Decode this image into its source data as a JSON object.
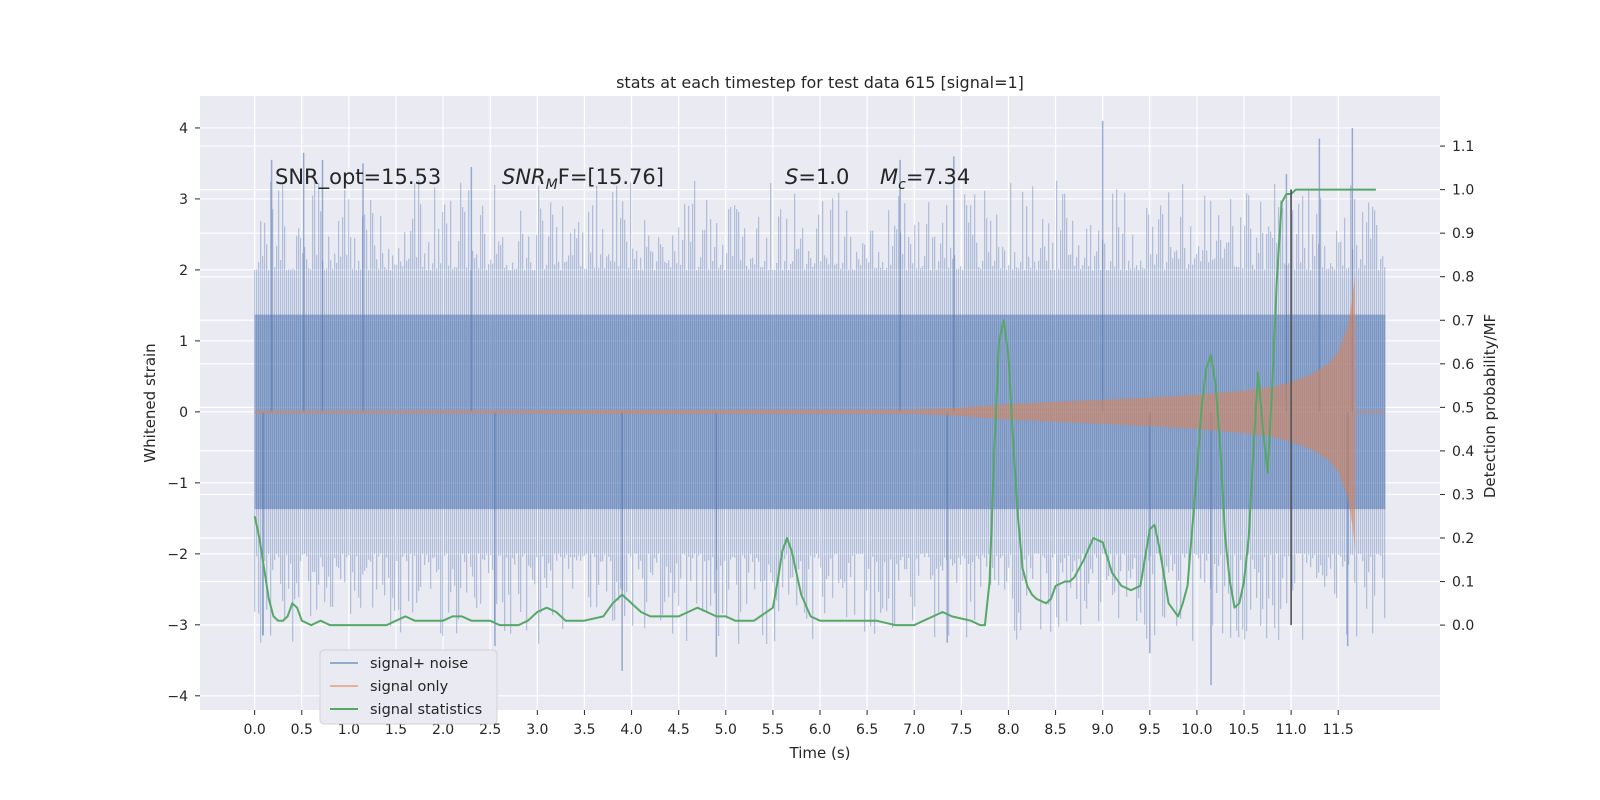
{
  "chart_data": {
    "type": "line",
    "title": "stats at each timestep for test data 615 [signal=1]",
    "xlabel": "Time (s)",
    "ylabel_left": "Whitened strain",
    "ylabel_right": "Detection probability/MF",
    "xlim": [
      -0.58,
      12.58
    ],
    "ylim_left": [
      -4.2,
      4.45
    ],
    "ylim_right": [
      -0.195,
      1.215
    ],
    "x_ticks": [
      0.0,
      0.5,
      1.0,
      1.5,
      2.0,
      2.5,
      3.0,
      3.5,
      4.0,
      4.5,
      5.0,
      5.5,
      6.0,
      6.5,
      7.0,
      7.5,
      8.0,
      8.5,
      9.0,
      9.5,
      10.0,
      10.5,
      11.0,
      11.5
    ],
    "x_tick_labels": [
      "0.0",
      "0.5",
      "1.0",
      "1.5",
      "2.0",
      "2.5",
      "3.0",
      "3.5",
      "4.0",
      "4.5",
      "5.0",
      "5.5",
      "6.0",
      "6.5",
      "7.0",
      "7.5",
      "8.0",
      "8.5",
      "9.0",
      "9.5",
      "10.0",
      "10.5",
      "11.0",
      "11.5"
    ],
    "y_left_ticks": [
      -4,
      -3,
      -2,
      -1,
      0,
      1,
      2,
      3,
      4
    ],
    "y_left_tick_labels": [
      "−4",
      "−3",
      "−2",
      "−1",
      "0",
      "1",
      "2",
      "3",
      "4"
    ],
    "y_right_ticks": [
      0.0,
      0.1,
      0.2,
      0.3,
      0.4,
      0.5,
      0.6,
      0.7,
      0.8,
      0.9,
      1.0,
      1.1
    ],
    "y_right_tick_labels": [
      "0.0",
      "0.1",
      "0.2",
      "0.3",
      "0.4",
      "0.5",
      "0.6",
      "0.7",
      "0.8",
      "0.9",
      "1.0",
      "1.1"
    ],
    "grid": true,
    "legend_position": "lower-left",
    "annotations": [
      {
        "id": "snr_opt",
        "text": "SNR_opt=15.53"
      },
      {
        "id": "snr_mf",
        "base": "SNR",
        "sub": "M",
        "rest": "F=[15.76]"
      },
      {
        "id": "s_value",
        "base": "S",
        "rest": "=1.0"
      },
      {
        "id": "mc_value",
        "base": "M",
        "sub": "c",
        "rest": "=7.34"
      }
    ],
    "vertical_line": {
      "x": 11.0,
      "y_right_range": [
        0.0,
        1.0
      ],
      "color": "#555555"
    },
    "series": [
      {
        "name": "signal+ noise",
        "axis": "left",
        "style": "dense_noise",
        "color": "#4c72b0",
        "t_range": [
          0.0,
          12.0
        ],
        "band_1sigma": 1.37,
        "typical_peak_range": [
          2.0,
          3.7
        ],
        "outlier_peaks": [
          {
            "t": 0.18,
            "v": 3.55
          },
          {
            "t": 0.52,
            "v": 3.65
          },
          {
            "t": 0.72,
            "v": 3.55
          },
          {
            "t": 1.15,
            "v": 3.5
          },
          {
            "t": 2.3,
            "v": 3.45
          },
          {
            "t": 6.85,
            "v": 3.55
          },
          {
            "t": 7.42,
            "v": 3.6
          },
          {
            "t": 9.0,
            "v": 4.1
          },
          {
            "t": 10.95,
            "v": 3.35
          },
          {
            "t": 11.3,
            "v": 3.85
          },
          {
            "t": 11.65,
            "v": 4.0
          },
          {
            "t": 0.09,
            "v": -3.15
          },
          {
            "t": 2.55,
            "v": -3.3
          },
          {
            "t": 3.9,
            "v": -3.65
          },
          {
            "t": 4.9,
            "v": -3.45
          },
          {
            "t": 7.35,
            "v": -3.25
          },
          {
            "t": 9.5,
            "v": -3.4
          },
          {
            "t": 10.15,
            "v": -3.85
          },
          {
            "t": 11.6,
            "v": -3.3
          }
        ]
      },
      {
        "name": "signal only",
        "axis": "left",
        "style": "chirp_envelope",
        "color": "#dd8452",
        "t_range": [
          0.0,
          12.0
        ],
        "envelope_t": [
          0.0,
          7.0,
          7.5,
          8.0,
          8.5,
          9.0,
          9.5,
          10.0,
          10.5,
          10.8,
          11.0,
          11.2,
          11.4,
          11.5,
          11.6,
          11.65,
          11.68
        ],
        "envelope_amp": [
          0.02,
          0.03,
          0.06,
          0.11,
          0.14,
          0.17,
          0.2,
          0.24,
          0.3,
          0.35,
          0.42,
          0.52,
          0.68,
          0.85,
          1.2,
          1.6,
          1.95
        ],
        "cutoff_t": 11.68
      },
      {
        "name": "signal statistics",
        "axis": "right",
        "style": "line",
        "color": "#55a868",
        "x": [
          0.0,
          0.05,
          0.1,
          0.15,
          0.2,
          0.25,
          0.3,
          0.35,
          0.4,
          0.45,
          0.5,
          0.6,
          0.7,
          0.8,
          1.0,
          1.2,
          1.3,
          1.4,
          1.5,
          1.6,
          1.7,
          1.8,
          2.0,
          2.1,
          2.2,
          2.3,
          2.5,
          2.6,
          2.8,
          2.9,
          3.0,
          3.1,
          3.2,
          3.3,
          3.5,
          3.7,
          3.8,
          3.9,
          4.0,
          4.1,
          4.2,
          4.5,
          4.6,
          4.7,
          4.8,
          4.9,
          5.0,
          5.1,
          5.3,
          5.5,
          5.55,
          5.6,
          5.65,
          5.7,
          5.75,
          5.8,
          5.9,
          6.0,
          6.2,
          6.4,
          6.6,
          6.8,
          7.0,
          7.1,
          7.2,
          7.3,
          7.4,
          7.6,
          7.7,
          7.75,
          7.8,
          7.85,
          7.9,
          7.95,
          8.0,
          8.05,
          8.1,
          8.15,
          8.2,
          8.25,
          8.3,
          8.4,
          8.45,
          8.5,
          8.6,
          8.65,
          8.7,
          8.8,
          8.9,
          9.0,
          9.1,
          9.2,
          9.3,
          9.4,
          9.5,
          9.55,
          9.6,
          9.7,
          9.8,
          9.85,
          9.9,
          9.95,
          10.0,
          10.05,
          10.1,
          10.15,
          10.2,
          10.25,
          10.3,
          10.35,
          10.4,
          10.45,
          10.5,
          10.55,
          10.6,
          10.65,
          10.7,
          10.75,
          10.8,
          10.85,
          10.9,
          10.95,
          11.0,
          11.05,
          11.1,
          11.15,
          11.2,
          11.3,
          11.4,
          11.5,
          11.6,
          11.7,
          11.8,
          11.9
        ],
        "values": [
          0.25,
          0.2,
          0.13,
          0.06,
          0.02,
          0.01,
          0.01,
          0.02,
          0.05,
          0.04,
          0.01,
          0.0,
          0.01,
          0.0,
          0.0,
          0.0,
          0.0,
          0.0,
          0.01,
          0.02,
          0.01,
          0.01,
          0.01,
          0.02,
          0.02,
          0.01,
          0.01,
          0.0,
          0.0,
          0.01,
          0.03,
          0.04,
          0.03,
          0.01,
          0.01,
          0.02,
          0.05,
          0.07,
          0.05,
          0.03,
          0.02,
          0.02,
          0.03,
          0.04,
          0.03,
          0.02,
          0.02,
          0.01,
          0.01,
          0.04,
          0.1,
          0.17,
          0.2,
          0.17,
          0.12,
          0.07,
          0.02,
          0.01,
          0.01,
          0.01,
          0.01,
          0.0,
          0.0,
          0.01,
          0.02,
          0.03,
          0.02,
          0.01,
          0.0,
          0.0,
          0.1,
          0.4,
          0.65,
          0.7,
          0.62,
          0.42,
          0.25,
          0.13,
          0.09,
          0.07,
          0.06,
          0.05,
          0.06,
          0.09,
          0.1,
          0.1,
          0.11,
          0.15,
          0.2,
          0.19,
          0.12,
          0.09,
          0.08,
          0.09,
          0.22,
          0.23,
          0.18,
          0.05,
          0.02,
          0.05,
          0.09,
          0.22,
          0.35,
          0.5,
          0.59,
          0.62,
          0.55,
          0.4,
          0.2,
          0.1,
          0.04,
          0.05,
          0.1,
          0.2,
          0.4,
          0.58,
          0.45,
          0.35,
          0.55,
          0.8,
          0.97,
          0.99,
          0.99,
          1.0,
          1.0,
          1.0,
          1.0,
          1.0,
          1.0,
          1.0,
          1.0,
          1.0,
          1.0,
          1.0
        ]
      }
    ]
  }
}
